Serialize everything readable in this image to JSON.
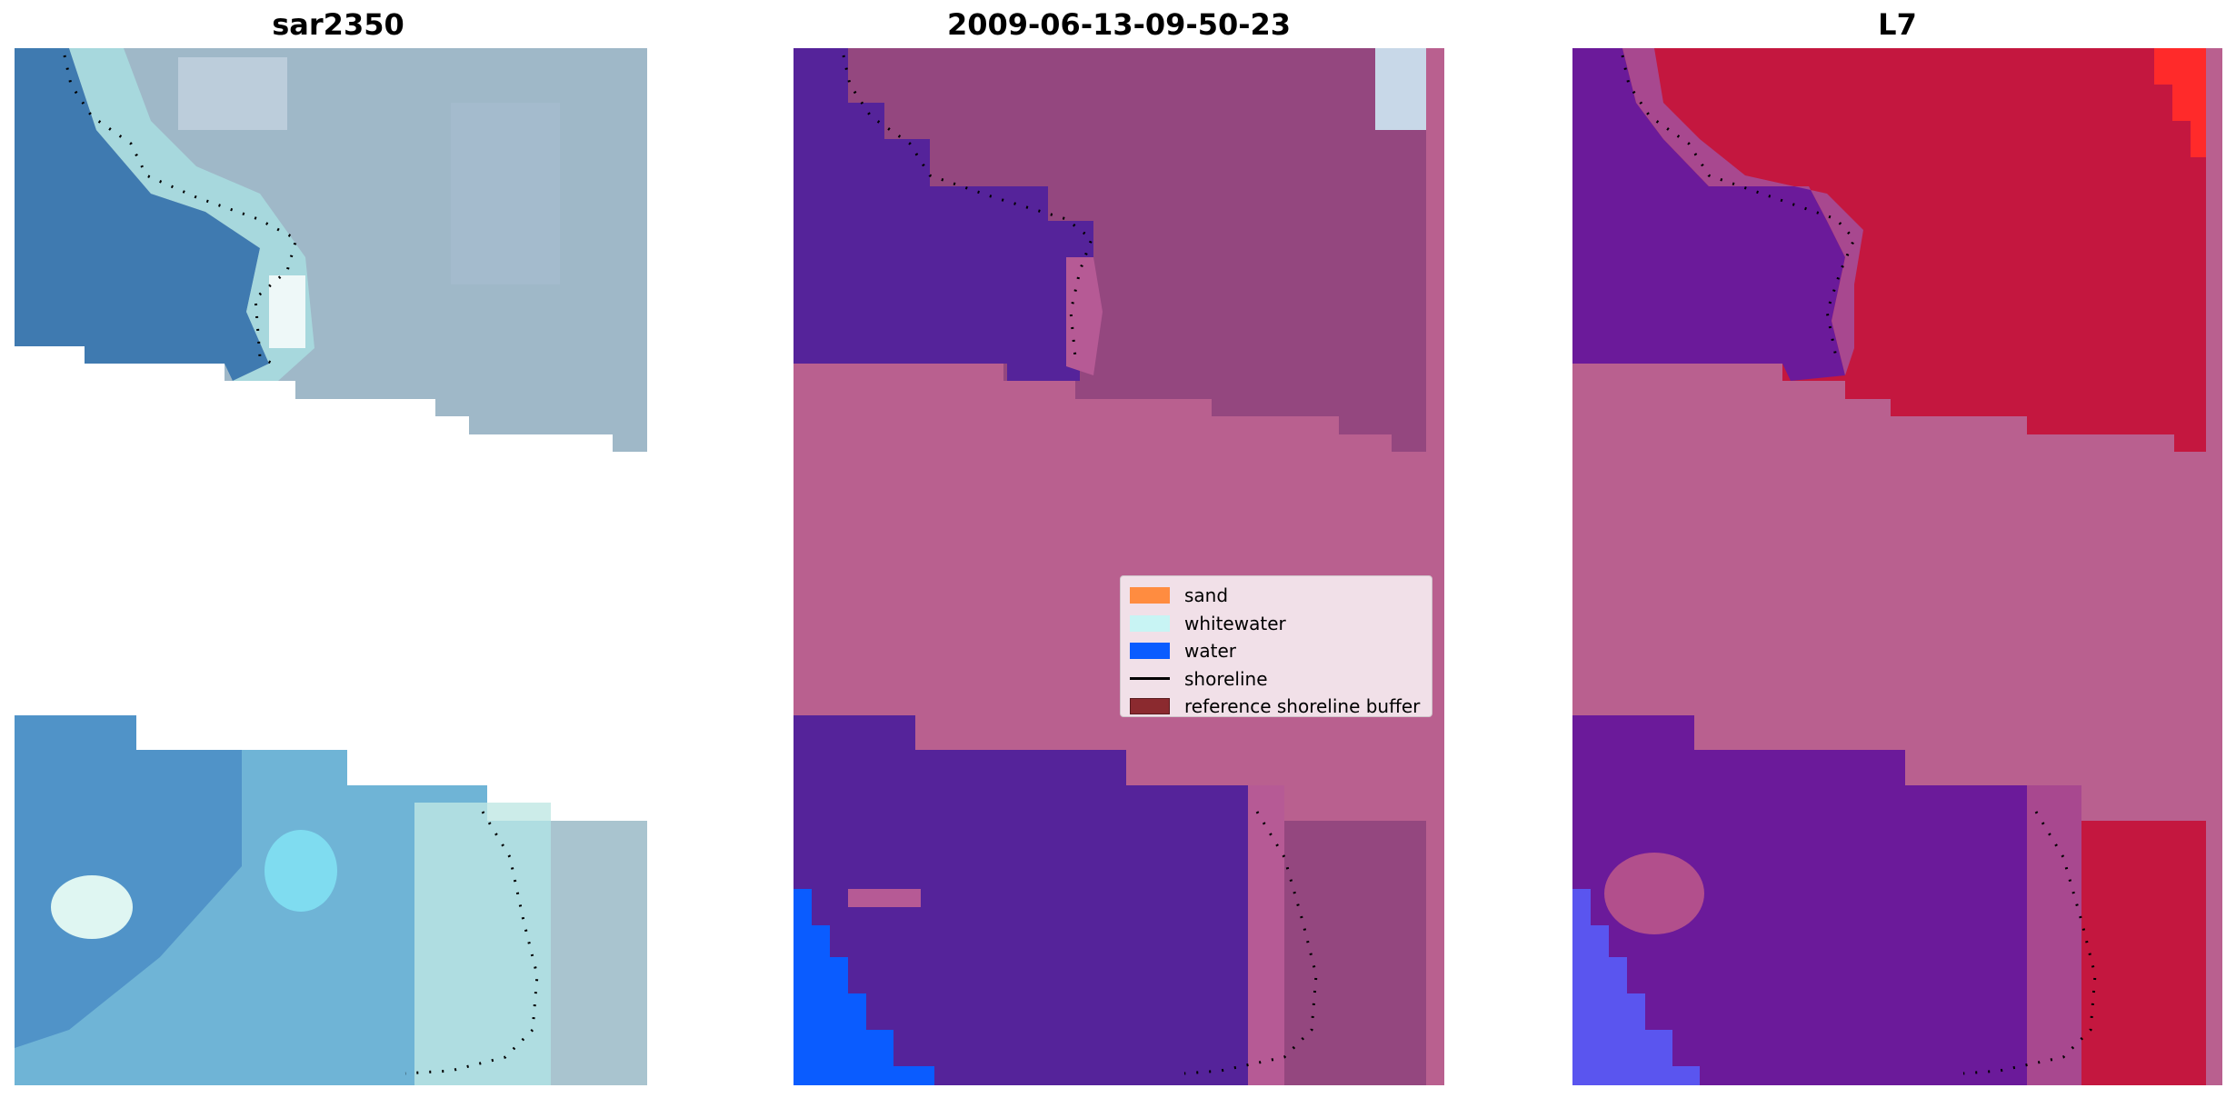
{
  "panels": [
    {
      "title": "sar2350"
    },
    {
      "title": "2009-06-13-09-50-23"
    },
    {
      "title": "L7"
    }
  ],
  "legend": {
    "items": [
      {
        "label": "sand",
        "color": "#ff8c40",
        "kind": "patch"
      },
      {
        "label": "whitewater",
        "color": "#c8f4f4",
        "kind": "patch"
      },
      {
        "label": "water",
        "color": "#0a5cff",
        "kind": "patch"
      },
      {
        "label": "shoreline",
        "color": "#000000",
        "kind": "line"
      },
      {
        "label": "reference shoreline buffer",
        "color": "#8b2a2f",
        "kind": "patch"
      }
    ]
  },
  "colors": {
    "nodata_pink": "#b9608f",
    "water_class": "#55239a",
    "sand_class_mauve": "#94477f",
    "sar_blue": "#3f7ab0",
    "sar_cyan": "#8ed8e6",
    "l7_red": "#c4173f",
    "l7_purple": "#6b1a9a"
  }
}
